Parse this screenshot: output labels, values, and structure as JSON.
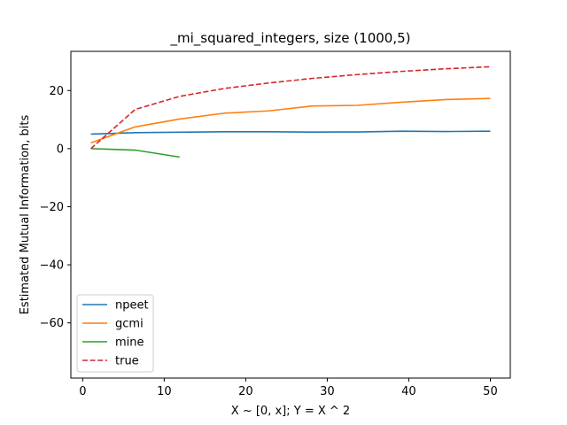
{
  "chart_data": {
    "type": "line",
    "title": "_mi_squared_integers, size (1000,5)",
    "xlabel": "X ~ [0, x]; Y = X ^ 2",
    "ylabel": "Estimated Mutual Information, bits",
    "xlim": [
      -1.45,
      52.45
    ],
    "ylim": [
      -79,
      33.5
    ],
    "xticks": [
      0,
      10,
      20,
      30,
      40,
      50
    ],
    "yticks": [
      -60,
      -40,
      -20,
      0,
      20
    ],
    "grid": false,
    "legend_position": "lower-left",
    "series": [
      {
        "name": "npeet",
        "color": "#1f77b4",
        "dash": "solid",
        "x": [
          1,
          6.44,
          11.89,
          17.33,
          22.78,
          28.22,
          33.67,
          39.11,
          44.56,
          50
        ],
        "y": [
          5.0,
          5.5,
          5.65,
          5.8,
          5.8,
          5.7,
          5.75,
          6.0,
          5.9,
          6.0
        ]
      },
      {
        "name": "gcmi",
        "color": "#ff7f0e",
        "dash": "solid",
        "x": [
          1,
          6.44,
          11.89,
          17.33,
          22.78,
          28.22,
          33.67,
          39.11,
          44.56,
          50
        ],
        "y": [
          2.0,
          7.5,
          10.2,
          12.2,
          13.0,
          14.7,
          14.9,
          16.0,
          16.9,
          17.3
        ]
      },
      {
        "name": "mine",
        "color": "#2ca02c",
        "dash": "solid",
        "x": [
          1,
          6.44,
          11.89
        ],
        "y": [
          0.0,
          -0.5,
          -2.9
        ]
      },
      {
        "name": "true",
        "color": "#d62728",
        "dash": "dashed",
        "x": [
          1,
          6.44,
          11.89,
          17.33,
          22.78,
          28.22,
          33.67,
          39.11,
          44.56,
          50
        ],
        "y": [
          0.0,
          13.5,
          18.0,
          20.7,
          22.6,
          24.2,
          25.5,
          26.6,
          27.5,
          28.2
        ]
      }
    ]
  }
}
